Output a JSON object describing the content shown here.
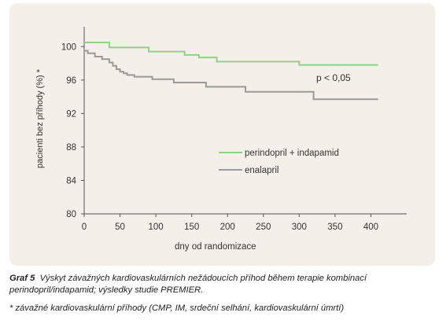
{
  "chart_data": {
    "type": "line",
    "ylabel": "pacienti bez příhody (%) *",
    "xlabel": "dny od randomizace",
    "xlim": [
      0,
      450
    ],
    "ylim": [
      80,
      102
    ],
    "xticks": [
      0,
      50,
      100,
      150,
      200,
      250,
      300,
      350,
      400
    ],
    "yticks": [
      80,
      84,
      88,
      92,
      96,
      100
    ],
    "annotation": "p < 0,05",
    "series": [
      {
        "name": "perindopril + indapamid",
        "color": "#8fd18a",
        "step": true,
        "x": [
          0,
          35,
          90,
          140,
          160,
          185,
          300,
          410
        ],
        "y": [
          100.5,
          99.9,
          99.4,
          99.0,
          98.7,
          98.2,
          97.8,
          97.8
        ]
      },
      {
        "name": "enalapril",
        "color": "#9a9a9a",
        "step": true,
        "x": [
          0,
          5,
          15,
          25,
          35,
          40,
          45,
          50,
          55,
          60,
          70,
          95,
          125,
          170,
          225,
          320,
          410
        ],
        "y": [
          99.5,
          99.2,
          98.8,
          98.5,
          98.1,
          97.7,
          97.3,
          97.0,
          96.8,
          96.6,
          96.4,
          96.1,
          95.7,
          95.2,
          94.6,
          93.7,
          93.7
        ]
      }
    ]
  },
  "caption": {
    "label": "Graf 5",
    "text": "Výskyt závažných kardiovaskulárních nežádoucích příhod během terapie kombinací perindopril/indapamid; výsledky studie PREMIER.",
    "footnote": "* závažné kardiovaskulární příhody (CMP, IM, srdeční selhání, kardiovaskulární úmrtí)"
  }
}
